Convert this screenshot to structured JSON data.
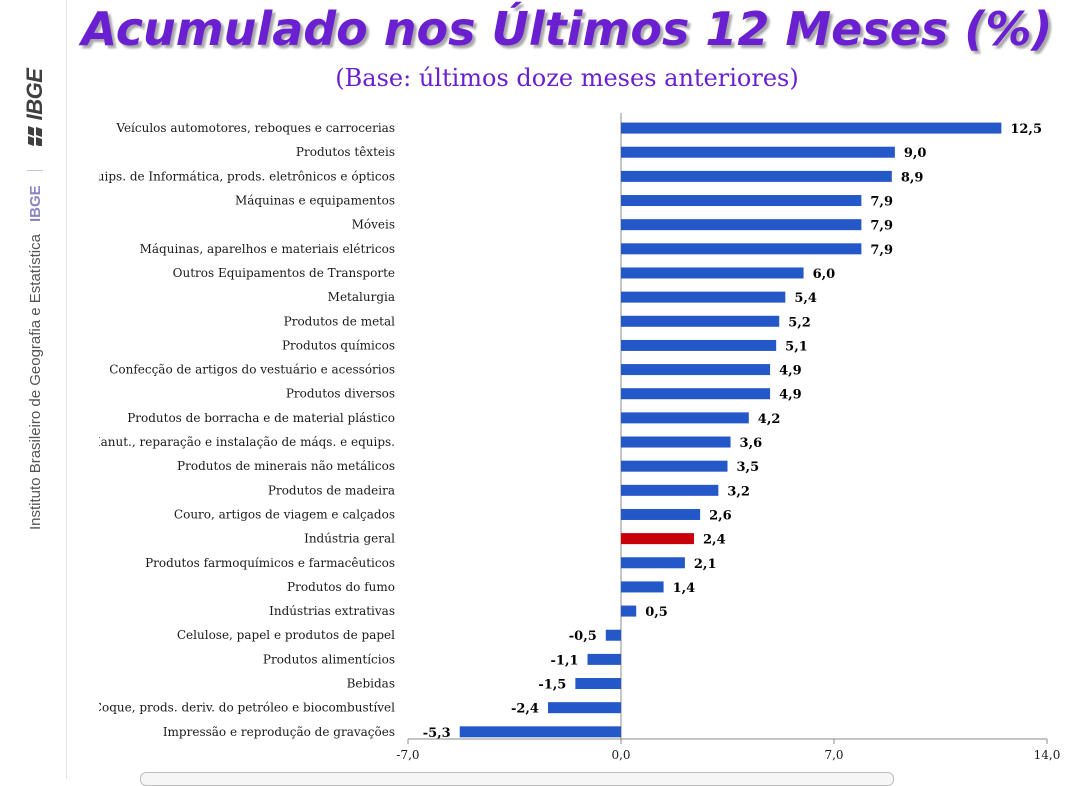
{
  "header": {
    "title": "Acumulado nos Últimos 12 Meses (%)",
    "subtitle": "(Base: últimos doze meses anteriores)"
  },
  "sidebar": {
    "institute_name": "Instituto Brasileiro de Geografia e Estatística",
    "short_name": "IBGE",
    "logo_text": "IBGE"
  },
  "colors": {
    "title": "#6a1fd0",
    "bar": "#2457c8",
    "highlight_bar": "#c8000a"
  },
  "chart_data": {
    "type": "bar",
    "orientation": "horizontal",
    "categories": [
      "Veículos automotores, reboques e carrocerias",
      "Produtos têxteis",
      "Equips. de Informática, prods. eletrônicos e ópticos",
      "Máquinas e equipamentos",
      "Móveis",
      "Máquinas, aparelhos e materiais elétricos",
      "Outros Equipamentos de Transporte",
      "Metalurgia",
      "Produtos de metal",
      "Produtos químicos",
      "Confecção de artigos do vestuário e acessórios",
      "Produtos diversos",
      "Produtos de borracha e de material plástico",
      "Manut., reparação e instalação de máqs. e equips.",
      "Produtos de minerais não metálicos",
      "Produtos de madeira",
      "Couro, artigos de viagem e calçados",
      "Indústria geral",
      "Produtos farmoquímicos e farmacêuticos",
      "Produtos do fumo",
      "Indústrias extrativas",
      "Celulose, papel e produtos de papel",
      "Produtos alimentícios",
      "Bebidas",
      "Coque, prods. deriv. do petróleo e biocombustível",
      "Impressão e reprodução de gravações"
    ],
    "values": [
      12.5,
      9.0,
      8.9,
      7.9,
      7.9,
      7.9,
      6.0,
      5.4,
      5.2,
      5.1,
      4.9,
      4.9,
      4.2,
      3.6,
      3.5,
      3.2,
      2.6,
      2.4,
      2.1,
      1.4,
      0.5,
      -0.5,
      -1.1,
      -1.5,
      -2.4,
      -5.3
    ],
    "value_labels": [
      "12,5",
      "9,0",
      "8,9",
      "7,9",
      "7,9",
      "7,9",
      "6,0",
      "5,4",
      "5,2",
      "5,1",
      "4,9",
      "4,9",
      "4,2",
      "3,6",
      "3,5",
      "3,2",
      "2,6",
      "2,4",
      "2,1",
      "1,4",
      "0,5",
      "-0,5",
      "-1,1",
      "-1,5",
      "-2,4",
      "-5,3"
    ],
    "highlight_category": "Indústria geral",
    "xlim": [
      -7.0,
      14.0
    ],
    "xticks": [
      -7.0,
      0.0,
      7.0,
      14.0
    ],
    "xtick_labels": [
      "-7,0",
      "0,0",
      "7,0",
      "14,0"
    ],
    "grid": false,
    "legend": "none"
  }
}
